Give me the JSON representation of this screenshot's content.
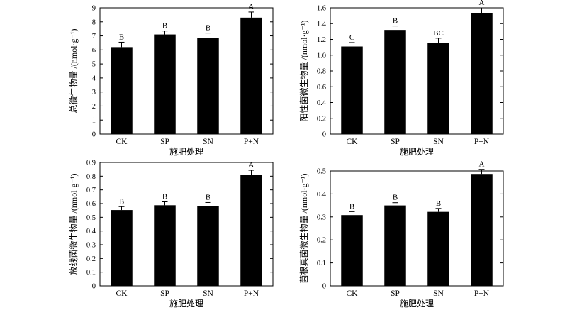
{
  "chart_data": [
    {
      "type": "bar",
      "categories": [
        "CK",
        "SP",
        "SN",
        "P+N"
      ],
      "values": [
        6.2,
        7.1,
        6.85,
        8.3
      ],
      "errors": [
        0.35,
        0.25,
        0.35,
        0.4
      ],
      "significance": [
        "B",
        "B",
        "B",
        "A"
      ],
      "xlabel": "施肥处理",
      "ylabel": "总微生物量 /(nmol·g⁻¹)",
      "ylim": [
        0,
        9
      ],
      "yticks": [
        "0",
        "1",
        "2",
        "3",
        "4",
        "5",
        "6",
        "7",
        "8",
        "9"
      ],
      "bar_color": "#000000"
    },
    {
      "type": "bar",
      "categories": [
        "CK",
        "SP",
        "SN",
        "P+N"
      ],
      "values": [
        1.11,
        1.32,
        1.155,
        1.53
      ],
      "errors": [
        0.05,
        0.05,
        0.06,
        0.07
      ],
      "significance": [
        "C",
        "B",
        "BC",
        "A"
      ],
      "xlabel": "施肥处理",
      "ylabel": "阳性菌微生物量 /(nmol·g⁻¹)",
      "ylim": [
        0,
        1.6
      ],
      "yticks": [
        "0",
        "0.2",
        "0.4",
        "0.6",
        "0.8",
        "1.0",
        "1.2",
        "1.4",
        "1.6"
      ],
      "bar_color": "#000000"
    },
    {
      "type": "bar",
      "categories": [
        "CK",
        "SP",
        "SN",
        "P+N"
      ],
      "values": [
        0.553,
        0.588,
        0.583,
        0.808
      ],
      "errors": [
        0.025,
        0.025,
        0.025,
        0.035
      ],
      "significance": [
        "B",
        "B",
        "B",
        "A"
      ],
      "xlabel": "施肥处理",
      "ylabel": "放线菌微生物量 /(nmol·g⁻¹)",
      "ylim": [
        0,
        0.9
      ],
      "yticks": [
        "0",
        "0.1",
        "0.2",
        "0.3",
        "0.4",
        "0.5",
        "0.6",
        "0.7",
        "0.8",
        "0.9"
      ],
      "bar_color": "#000000"
    },
    {
      "type": "bar",
      "categories": [
        "CK",
        "SP",
        "SN",
        "P+N"
      ],
      "values": [
        0.308,
        0.35,
        0.322,
        0.487
      ],
      "errors": [
        0.015,
        0.012,
        0.015,
        0.02
      ],
      "significance": [
        "B",
        "B",
        "B",
        "A"
      ],
      "xlabel": "施肥处理",
      "ylabel": "菌根真菌微生物量 /(nmol·g⁻¹)",
      "ylim": [
        0,
        0.5
      ],
      "yticks": [
        "0",
        "0.1",
        "0.2",
        "0.3",
        "0.4",
        "0.5"
      ],
      "bar_color": "#000000"
    }
  ]
}
